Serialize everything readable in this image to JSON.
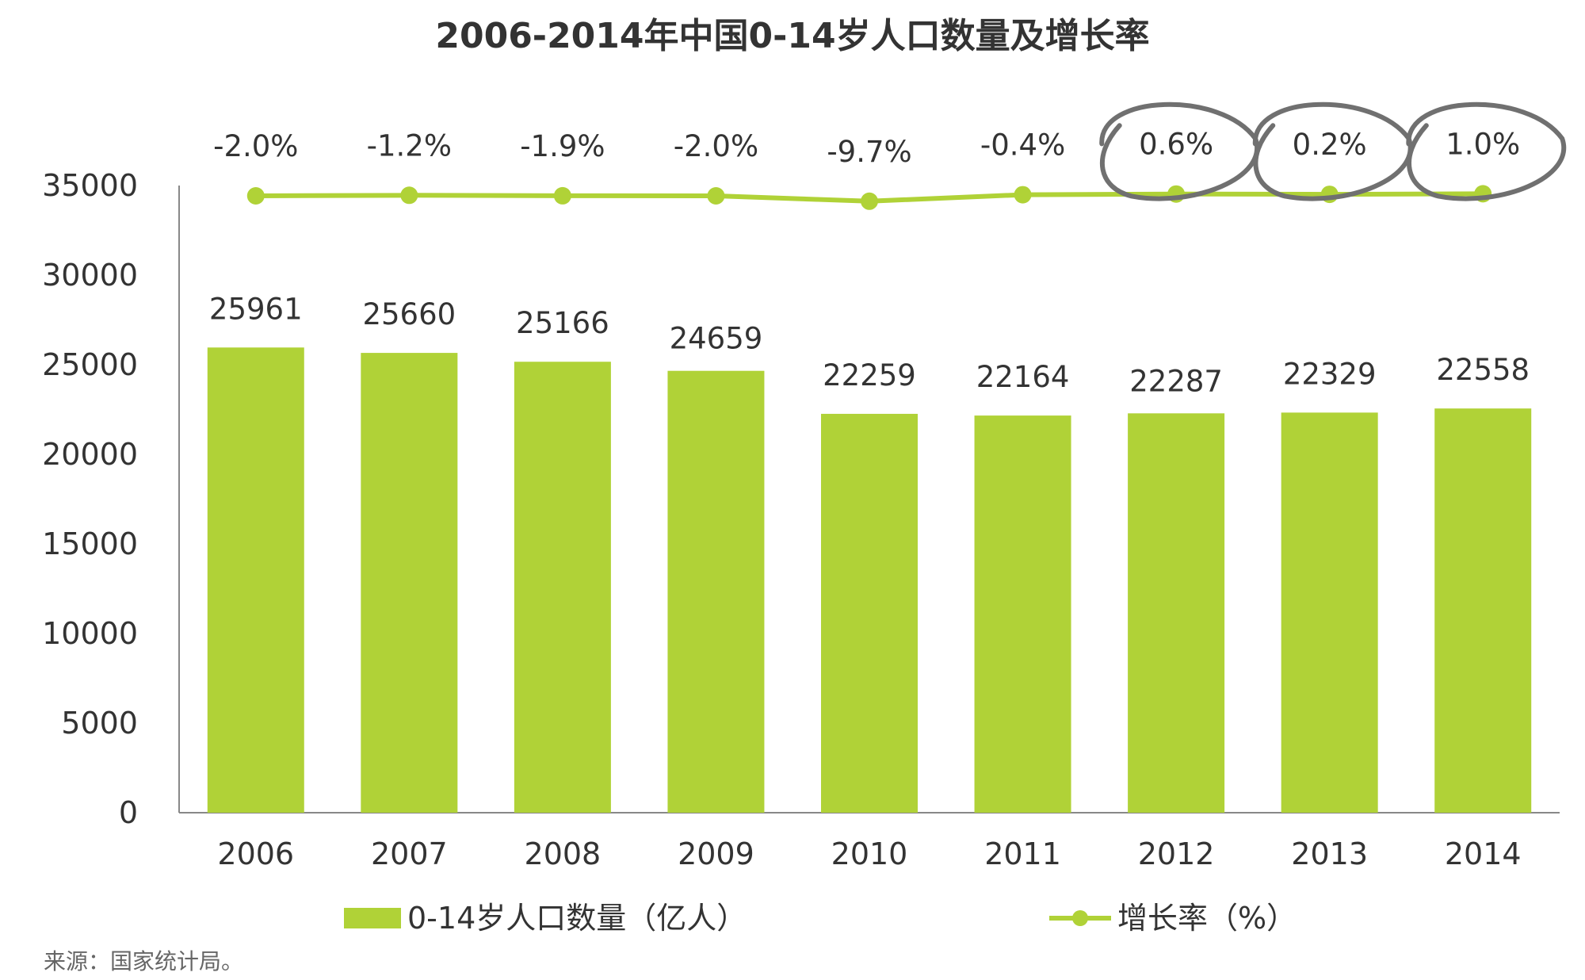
{
  "title": "2006-2014年中国0-14岁人口数量及增长率",
  "source": "来源：国家统计局。",
  "colors": {
    "bar": "#b0d237",
    "line": "#b0d237",
    "axis": "#888888",
    "annotation": "#707070",
    "text": "#333333"
  },
  "chart_data": {
    "type": "bar",
    "categories": [
      "2006",
      "2007",
      "2008",
      "2009",
      "2010",
      "2011",
      "2012",
      "2013",
      "2014"
    ],
    "ylim": [
      0,
      35000
    ],
    "yticks": [
      "0",
      "5000",
      "10000",
      "15000",
      "20000",
      "25000",
      "30000",
      "35000"
    ],
    "grid": false,
    "legend_position": "bottom",
    "series": [
      {
        "name": "0-14岁人口数量（亿人）",
        "type": "bar",
        "values": [
          25961,
          25660,
          25166,
          24659,
          22259,
          22164,
          22287,
          22329,
          22558
        ],
        "labels": [
          "25961",
          "25660",
          "25166",
          "24659",
          "22259",
          "22164",
          "22287",
          "22329",
          "22558"
        ]
      },
      {
        "name": "增长率（%）",
        "type": "line",
        "values": [
          -2.0,
          -1.2,
          -1.9,
          -2.0,
          -9.7,
          -0.4,
          0.6,
          0.2,
          1.0
        ],
        "labels": [
          "-2.0%",
          "-1.2%",
          "-1.9%",
          "-2.0%",
          "-9.7%",
          "-0.4%",
          "0.6%",
          "0.2%",
          "1.0%"
        ]
      }
    ],
    "annotations": {
      "circled_categories": [
        "2012",
        "2013",
        "2014"
      ]
    }
  }
}
